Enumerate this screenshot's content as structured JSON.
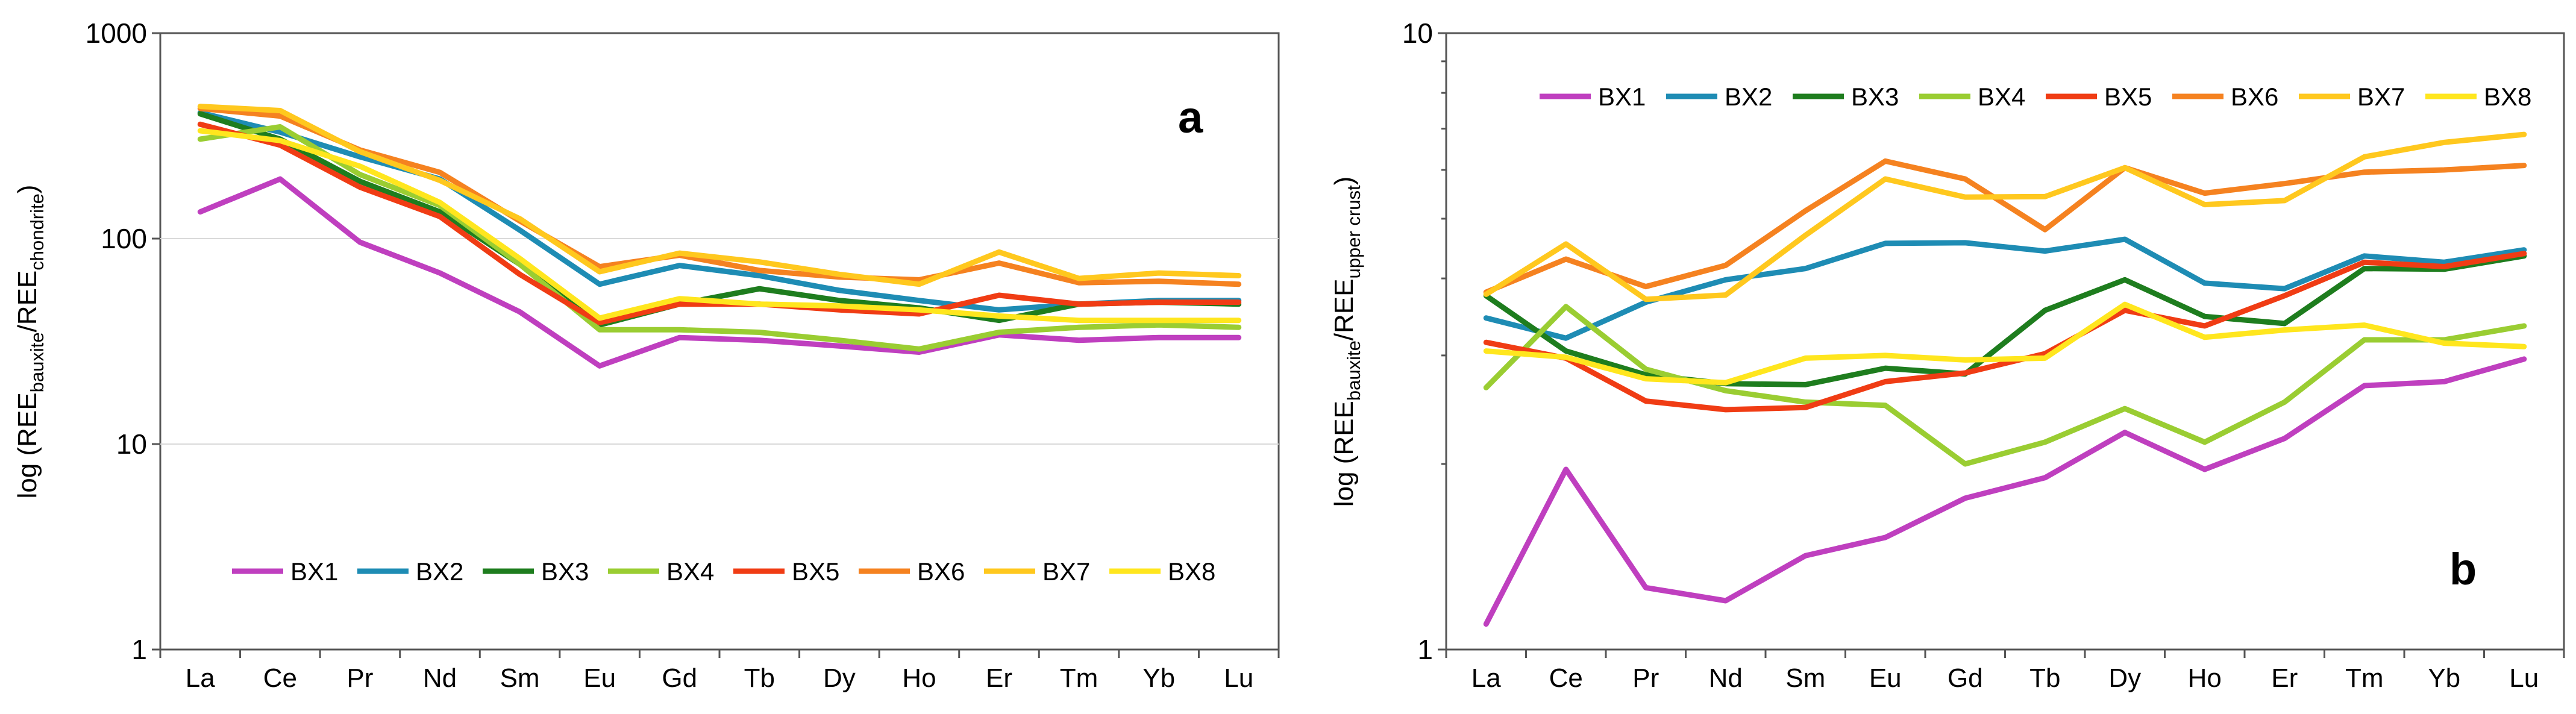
{
  "colors": {
    "BX1": "#BF3FBF",
    "BX2": "#1E8CB4",
    "BX3": "#1E7D1E",
    "BX4": "#9ACD32",
    "BX5": "#F03C14",
    "BX6": "#F58220",
    "BX7": "#FFC81E",
    "BX8": "#FFE61E"
  },
  "chart_data": [
    {
      "type": "line",
      "panel_label": "a",
      "ylabel_main": "log (REE",
      "ylabel_sub1": "bauxite",
      "ylabel_mid": "/REE",
      "ylabel_sub2": "chondrite",
      "ylabel_end": ")",
      "yscale": "log",
      "ylim": [
        1,
        1000
      ],
      "yticks": [
        1,
        10,
        100,
        1000
      ],
      "ytick_labels": [
        "1",
        "10",
        "100",
        "1000"
      ],
      "grid": true,
      "legend_position": "bottom",
      "categories": [
        "La",
        "Ce",
        "Pr",
        "Nd",
        "Sm",
        "Eu",
        "Gd",
        "Tb",
        "Dy",
        "Ho",
        "Er",
        "Tm",
        "Yb",
        "Lu"
      ],
      "series": [
        {
          "name": "BX1",
          "values": [
            135,
            195,
            96,
            68,
            44,
            24,
            33,
            32,
            30,
            28,
            34,
            32,
            33,
            33
          ]
        },
        {
          "name": "BX2",
          "values": [
            410,
            330,
            250,
            195,
            110,
            60,
            74,
            66,
            56,
            50,
            45,
            48,
            50,
            50
          ]
        },
        {
          "name": "BX3",
          "values": [
            405,
            305,
            190,
            135,
            75,
            38,
            48,
            57,
            50,
            46,
            40,
            48,
            49,
            48
          ]
        },
        {
          "name": "BX4",
          "values": [
            305,
            350,
            205,
            145,
            75,
            36,
            36,
            35,
            32,
            29,
            35,
            37,
            38,
            37
          ]
        },
        {
          "name": "BX5",
          "values": [
            360,
            285,
            178,
            128,
            67,
            39,
            48,
            48,
            45,
            43,
            53,
            48,
            49,
            49
          ]
        },
        {
          "name": "BX6",
          "values": [
            430,
            395,
            270,
            210,
            122,
            73,
            83,
            70,
            65,
            63,
            76,
            61,
            62,
            60
          ]
        },
        {
          "name": "BX7",
          "values": [
            440,
            420,
            265,
            192,
            125,
            69,
            85,
            77,
            67,
            60,
            86,
            64,
            68,
            66
          ]
        },
        {
          "name": "BX8",
          "values": [
            335,
            300,
            225,
            150,
            80,
            41,
            51,
            48,
            47,
            45,
            42,
            40,
            40,
            40
          ]
        }
      ]
    },
    {
      "type": "line",
      "panel_label": "b",
      "ylabel_main": "log (REE",
      "ylabel_sub1": "bauxite",
      "ylabel_mid": "/REE",
      "ylabel_sub2": "upper crust",
      "ylabel_end": ")",
      "yscale": "log",
      "ylim": [
        1,
        10
      ],
      "yticks": [
        1,
        10
      ],
      "ytick_labels": [
        "1",
        "10"
      ],
      "grid": false,
      "legend_position": "top",
      "categories": [
        "La",
        "Ce",
        "Pr",
        "Nd",
        "Sm",
        "Eu",
        "Gd",
        "Tb",
        "Dy",
        "Ho",
        "Er",
        "Tm",
        "Yb",
        "Lu"
      ],
      "series": [
        {
          "name": "BX1",
          "values": [
            1.1,
            1.96,
            1.26,
            1.2,
            1.42,
            1.52,
            1.76,
            1.9,
            2.25,
            1.96,
            2.2,
            2.68,
            2.72,
            2.96
          ]
        },
        {
          "name": "BX2",
          "values": [
            3.45,
            3.2,
            3.66,
            3.98,
            4.15,
            4.56,
            4.57,
            4.43,
            4.63,
            3.93,
            3.85,
            4.35,
            4.25,
            4.45
          ]
        },
        {
          "name": "BX3",
          "values": [
            3.75,
            3.05,
            2.79,
            2.7,
            2.69,
            2.86,
            2.8,
            3.55,
            3.98,
            3.47,
            3.38,
            4.15,
            4.14,
            4.35
          ]
        },
        {
          "name": "BX4",
          "values": [
            2.66,
            3.6,
            2.85,
            2.63,
            2.52,
            2.49,
            2.0,
            2.17,
            2.46,
            2.17,
            2.52,
            3.18,
            3.18,
            3.35
          ]
        },
        {
          "name": "BX5",
          "values": [
            3.15,
            2.97,
            2.53,
            2.45,
            2.47,
            2.72,
            2.81,
            3.02,
            3.55,
            3.35,
            3.75,
            4.25,
            4.18,
            4.39
          ]
        },
        {
          "name": "BX6",
          "values": [
            3.8,
            4.3,
            3.88,
            4.2,
            5.15,
            6.2,
            5.8,
            4.8,
            6.05,
            5.5,
            5.7,
            5.95,
            6.0,
            6.1
          ]
        },
        {
          "name": "BX7",
          "values": [
            3.77,
            4.55,
            3.7,
            3.76,
            4.7,
            5.8,
            5.42,
            5.43,
            6.05,
            5.27,
            5.35,
            6.3,
            6.65,
            6.85
          ]
        },
        {
          "name": "BX8",
          "values": [
            3.05,
            2.98,
            2.75,
            2.71,
            2.97,
            3.0,
            2.95,
            2.97,
            3.63,
            3.21,
            3.3,
            3.36,
            3.14,
            3.1
          ]
        }
      ]
    }
  ]
}
